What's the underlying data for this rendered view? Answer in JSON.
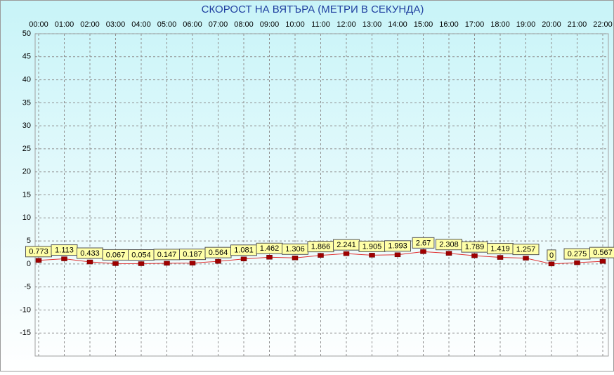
{
  "chart_data": {
    "type": "line",
    "title": "СКОРОСТ НА ВЯТЪРА (МЕТРИ В СЕКУНДА)",
    "categories": [
      "00:00",
      "01:00",
      "02:00",
      "03:00",
      "04:00",
      "05:00",
      "06:00",
      "07:00",
      "08:00",
      "09:00",
      "10:00",
      "11:00",
      "12:00",
      "13:00",
      "14:00",
      "15:00",
      "16:00",
      "17:00",
      "18:00",
      "19:00",
      "20:00",
      "21:00",
      "22:00"
    ],
    "series": [
      {
        "color": "#e03030",
        "values": [
          0.773,
          1.113,
          0.433,
          0.067,
          0.054,
          0.147,
          0.187,
          0.564,
          1.081,
          1.462,
          1.306,
          1.866,
          2.241,
          1.905,
          1.993,
          2.67,
          2.308,
          1.789,
          1.419,
          1.257,
          0,
          0.275,
          0.567
        ]
      }
    ],
    "ylim": [
      -20,
      50
    ],
    "yticks": [
      -15,
      -10,
      -5,
      0,
      5,
      10,
      15,
      20,
      25,
      30,
      35,
      40,
      45,
      50
    ],
    "grid": true
  }
}
